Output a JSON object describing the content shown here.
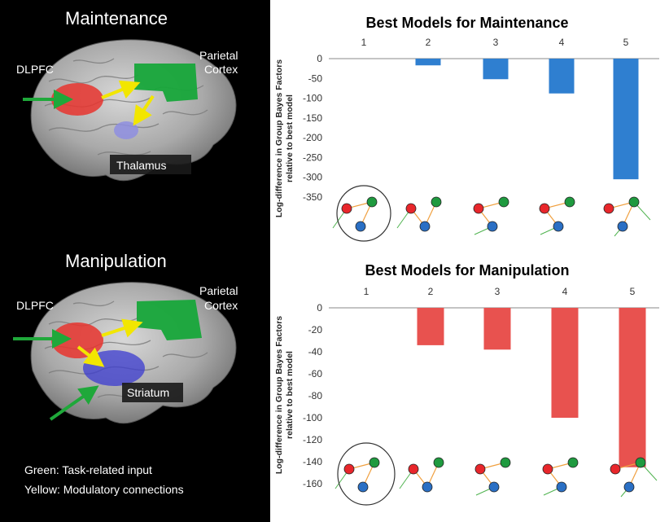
{
  "left_panel": {
    "maintenance": {
      "heading": "Maintenance",
      "labels": {
        "dlpfc": "DLPFC",
        "parietal_1": "Parietal",
        "parietal_2": "Cortex",
        "thalamus": "Thalamus"
      }
    },
    "manipulation": {
      "heading": "Manipulation",
      "labels": {
        "dlpfc": "DLPFC",
        "parietal_1": "Parietal",
        "parietal_2": "Cortex",
        "striatum": "Striatum"
      }
    },
    "legend": {
      "green": "Green: Task-related input",
      "yellow": "Yellow: Modulatory connections"
    },
    "colors": {
      "dlpfc": "#e8342e",
      "parietal": "#17a63a",
      "thalamus": "#8e8ee0",
      "striatum": "#3b3bd0",
      "input_arrow": "#1fa83a",
      "modulatory_arrow": "#f2e600"
    }
  },
  "chart_data": [
    {
      "type": "bar",
      "title": "Best Models for Maintenance",
      "ylabel": "Log-difference in Group Bayes Factors",
      "ylabel2": "relative to best model",
      "categories": [
        "1",
        "2",
        "3",
        "4",
        "5"
      ],
      "values": [
        0,
        -17,
        -52,
        -88,
        -305
      ],
      "ylim": [
        -350,
        0
      ],
      "yticks": [
        0,
        -50,
        -100,
        -150,
        -200,
        -250,
        -300,
        -350
      ],
      "color": "#2f7fd0",
      "xaxis_position": "top",
      "grid": false
    },
    {
      "type": "bar",
      "title": "Best Models for Manipulation",
      "ylabel": "Log-difference in Group Bayes Factors",
      "ylabel2": "relative to best model",
      "categories": [
        "1",
        "2",
        "3",
        "4",
        "5"
      ],
      "values": [
        0,
        -34,
        -38,
        -100,
        -145
      ],
      "ylim": [
        -160,
        0
      ],
      "yticks": [
        0,
        -20,
        -40,
        -60,
        -80,
        -100,
        -120,
        -140,
        -160
      ],
      "color": "#e8524f",
      "xaxis_position": "top",
      "grid": false
    }
  ],
  "model_diagram_colors": {
    "red": "#e8262b",
    "green": "#1f9a3f",
    "blue": "#2a6fc4",
    "arrow": "#f0a040",
    "input": "#4fb34f"
  }
}
